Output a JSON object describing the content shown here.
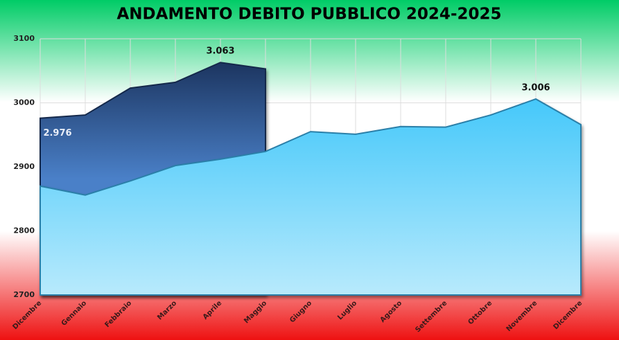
{
  "chart_data": {
    "type": "area",
    "title": "ANDAMENTO DEBITO PUBBLICO 2024-2025",
    "categories": [
      "Dicembre",
      "Gennaio",
      "Febbraio",
      "Marzo",
      "Aprile",
      "Maggio",
      "Giugno",
      "Luglio",
      "Agosto",
      "Settembre",
      "Ottobre",
      "Novembre",
      "Dicembre"
    ],
    "series": [
      {
        "color": "#4dc9f6",
        "values": [
          2870,
          2856,
          2878,
          2902,
          2912,
          2924,
          2955,
          2951,
          2963,
          2962,
          2981,
          3006,
          2966
        ],
        "value_labels": [
          null,
          null,
          null,
          null,
          null,
          null,
          null,
          null,
          null,
          null,
          null,
          "3.006",
          null
        ]
      },
      {
        "color": "#1f3864",
        "values": [
          2976,
          2981,
          3023,
          3032,
          3063,
          3053,
          null,
          null,
          null,
          null,
          null,
          null,
          null
        ],
        "value_labels": [
          "2.976",
          null,
          null,
          null,
          "3.063",
          null,
          null,
          null,
          null,
          null,
          null,
          null,
          null
        ]
      }
    ],
    "ylim": [
      2700,
      3100
    ],
    "yticks": [
      2700,
      2800,
      2900,
      3000,
      3100
    ],
    "grid": true
  }
}
